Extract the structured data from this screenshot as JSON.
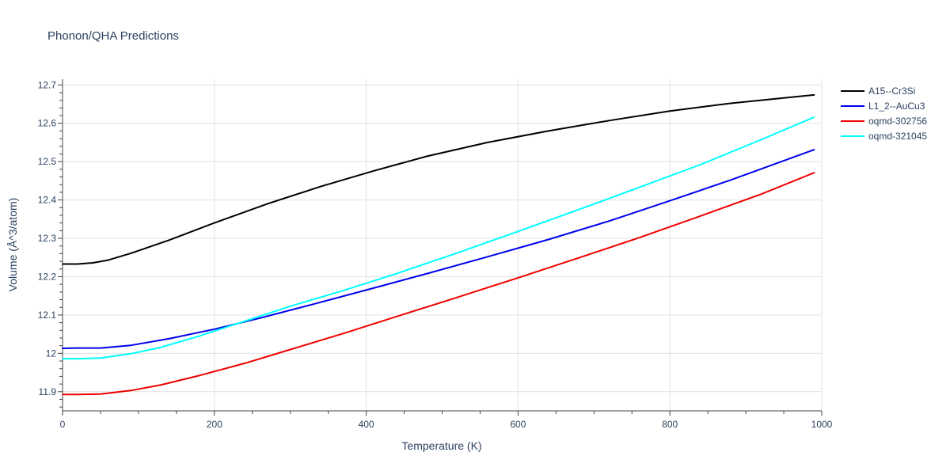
{
  "chart_data": {
    "type": "line",
    "title": "Phonon/QHA Predictions",
    "xlabel": "Temperature (K)",
    "ylabel": "Volume (Å^3/atom)",
    "xlim": [
      0,
      1000
    ],
    "ylim": [
      11.85,
      12.715
    ],
    "xticks": [
      0,
      200,
      400,
      600,
      800,
      1000
    ],
    "yticks": [
      11.9,
      12.0,
      12.1,
      12.2,
      12.3,
      12.4,
      12.5,
      12.6,
      12.7
    ],
    "ytick_labels": [
      "11.9",
      "12",
      "12.1",
      "12.2",
      "12.3",
      "12.4",
      "12.5",
      "12.6",
      "12.7"
    ],
    "grid": true,
    "legend_position": "top-right",
    "series": [
      {
        "name": "A15--Cr3Si",
        "color": "#000000",
        "x": [
          0,
          20,
          40,
          60,
          90,
          140,
          200,
          270,
          340,
          410,
          480,
          560,
          640,
          720,
          800,
          880,
          990
        ],
        "y": [
          12.233,
          12.233,
          12.236,
          12.243,
          12.261,
          12.295,
          12.34,
          12.39,
          12.435,
          12.476,
          12.514,
          12.55,
          12.58,
          12.607,
          12.632,
          12.652,
          12.674
        ]
      },
      {
        "name": "L1_2--AuCu3",
        "color": "#0000ee",
        "x": [
          0,
          20,
          50,
          90,
          140,
          200,
          260,
          330,
          400,
          480,
          560,
          640,
          720,
          800,
          880,
          990
        ],
        "y": [
          12.013,
          12.014,
          12.014,
          12.021,
          12.038,
          12.063,
          12.092,
          12.128,
          12.165,
          12.208,
          12.252,
          12.297,
          12.345,
          12.398,
          12.452,
          12.531
        ]
      },
      {
        "name": "oqmd-302756",
        "color": "#ee0000",
        "x": [
          0,
          20,
          50,
          90,
          130,
          180,
          240,
          300,
          370,
          440,
          520,
          600,
          680,
          760,
          840,
          920,
          990
        ],
        "y": [
          11.893,
          11.893,
          11.894,
          11.903,
          11.918,
          11.942,
          11.974,
          12.01,
          12.052,
          12.096,
          12.146,
          12.197,
          12.249,
          12.302,
          12.358,
          12.415,
          12.471
        ]
      },
      {
        "name": "oqmd-321045",
        "color": "#00ffff",
        "x": [
          0,
          20,
          50,
          90,
          130,
          180,
          240,
          300,
          370,
          440,
          520,
          600,
          680,
          760,
          840,
          920,
          990
        ],
        "y": [
          11.986,
          11.986,
          11.988,
          11.999,
          12.016,
          12.045,
          12.084,
          12.123,
          12.164,
          12.208,
          12.262,
          12.318,
          12.375,
          12.433,
          12.492,
          12.557,
          12.616
        ]
      }
    ]
  }
}
